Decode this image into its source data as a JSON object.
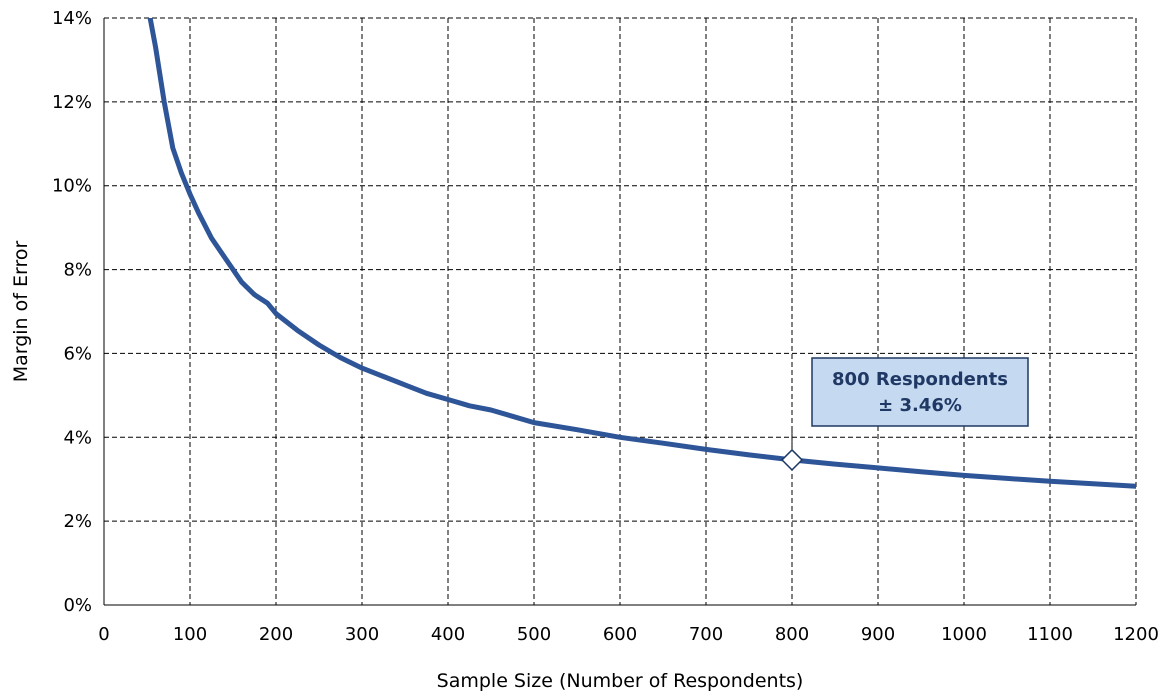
{
  "chart_data": {
    "type": "line",
    "title": "",
    "xlabel": "Sample Size (Number of Respondents)",
    "ylabel": "Margin of Error",
    "xlim": [
      0,
      1200
    ],
    "ylim": [
      0,
      14
    ],
    "x_ticks": [
      0,
      100,
      200,
      300,
      400,
      500,
      600,
      700,
      800,
      900,
      1000,
      1100,
      1200
    ],
    "x_tick_labels": [
      "0",
      "100",
      "200",
      "300",
      "400",
      "500",
      "600",
      "700",
      "800",
      "900",
      "1000",
      "1100",
      "1200"
    ],
    "y_ticks": [
      0,
      2,
      4,
      6,
      8,
      10,
      12,
      14
    ],
    "y_tick_labels": [
      "0%",
      "2%",
      "4%",
      "6%",
      "8%",
      "10%",
      "12%",
      "14%"
    ],
    "grid": true,
    "legend": "none",
    "series": [
      {
        "color": "#2e5597",
        "x": [
          50,
          60,
          70,
          80,
          90,
          100,
          110,
          125,
          140,
          160,
          175,
          190,
          200,
          225,
          250,
          275,
          300,
          325,
          350,
          375,
          400,
          425,
          450,
          475,
          500,
          550,
          600,
          650,
          700,
          750,
          800,
          850,
          900,
          950,
          1000,
          1050,
          1100,
          1150,
          1200
        ],
        "y": [
          14.4,
          13.3,
          12.0,
          10.9,
          10.3,
          9.8,
          9.35,
          8.75,
          8.3,
          7.7,
          7.4,
          7.2,
          6.95,
          6.55,
          6.2,
          5.9,
          5.65,
          5.45,
          5.25,
          5.05,
          4.9,
          4.75,
          4.65,
          4.5,
          4.35,
          4.18,
          4.0,
          3.86,
          3.71,
          3.58,
          3.46,
          3.36,
          3.27,
          3.18,
          3.09,
          3.02,
          2.95,
          2.89,
          2.83
        ]
      }
    ],
    "annotations": [
      {
        "x": 800,
        "y": 3.46,
        "marker": "diamond",
        "lines": [
          "800 Respondents",
          "± 3.46%"
        ],
        "box_fill": "#c5d9f1",
        "border_color": "#1f3864",
        "text_color": "#1f3864"
      }
    ]
  }
}
